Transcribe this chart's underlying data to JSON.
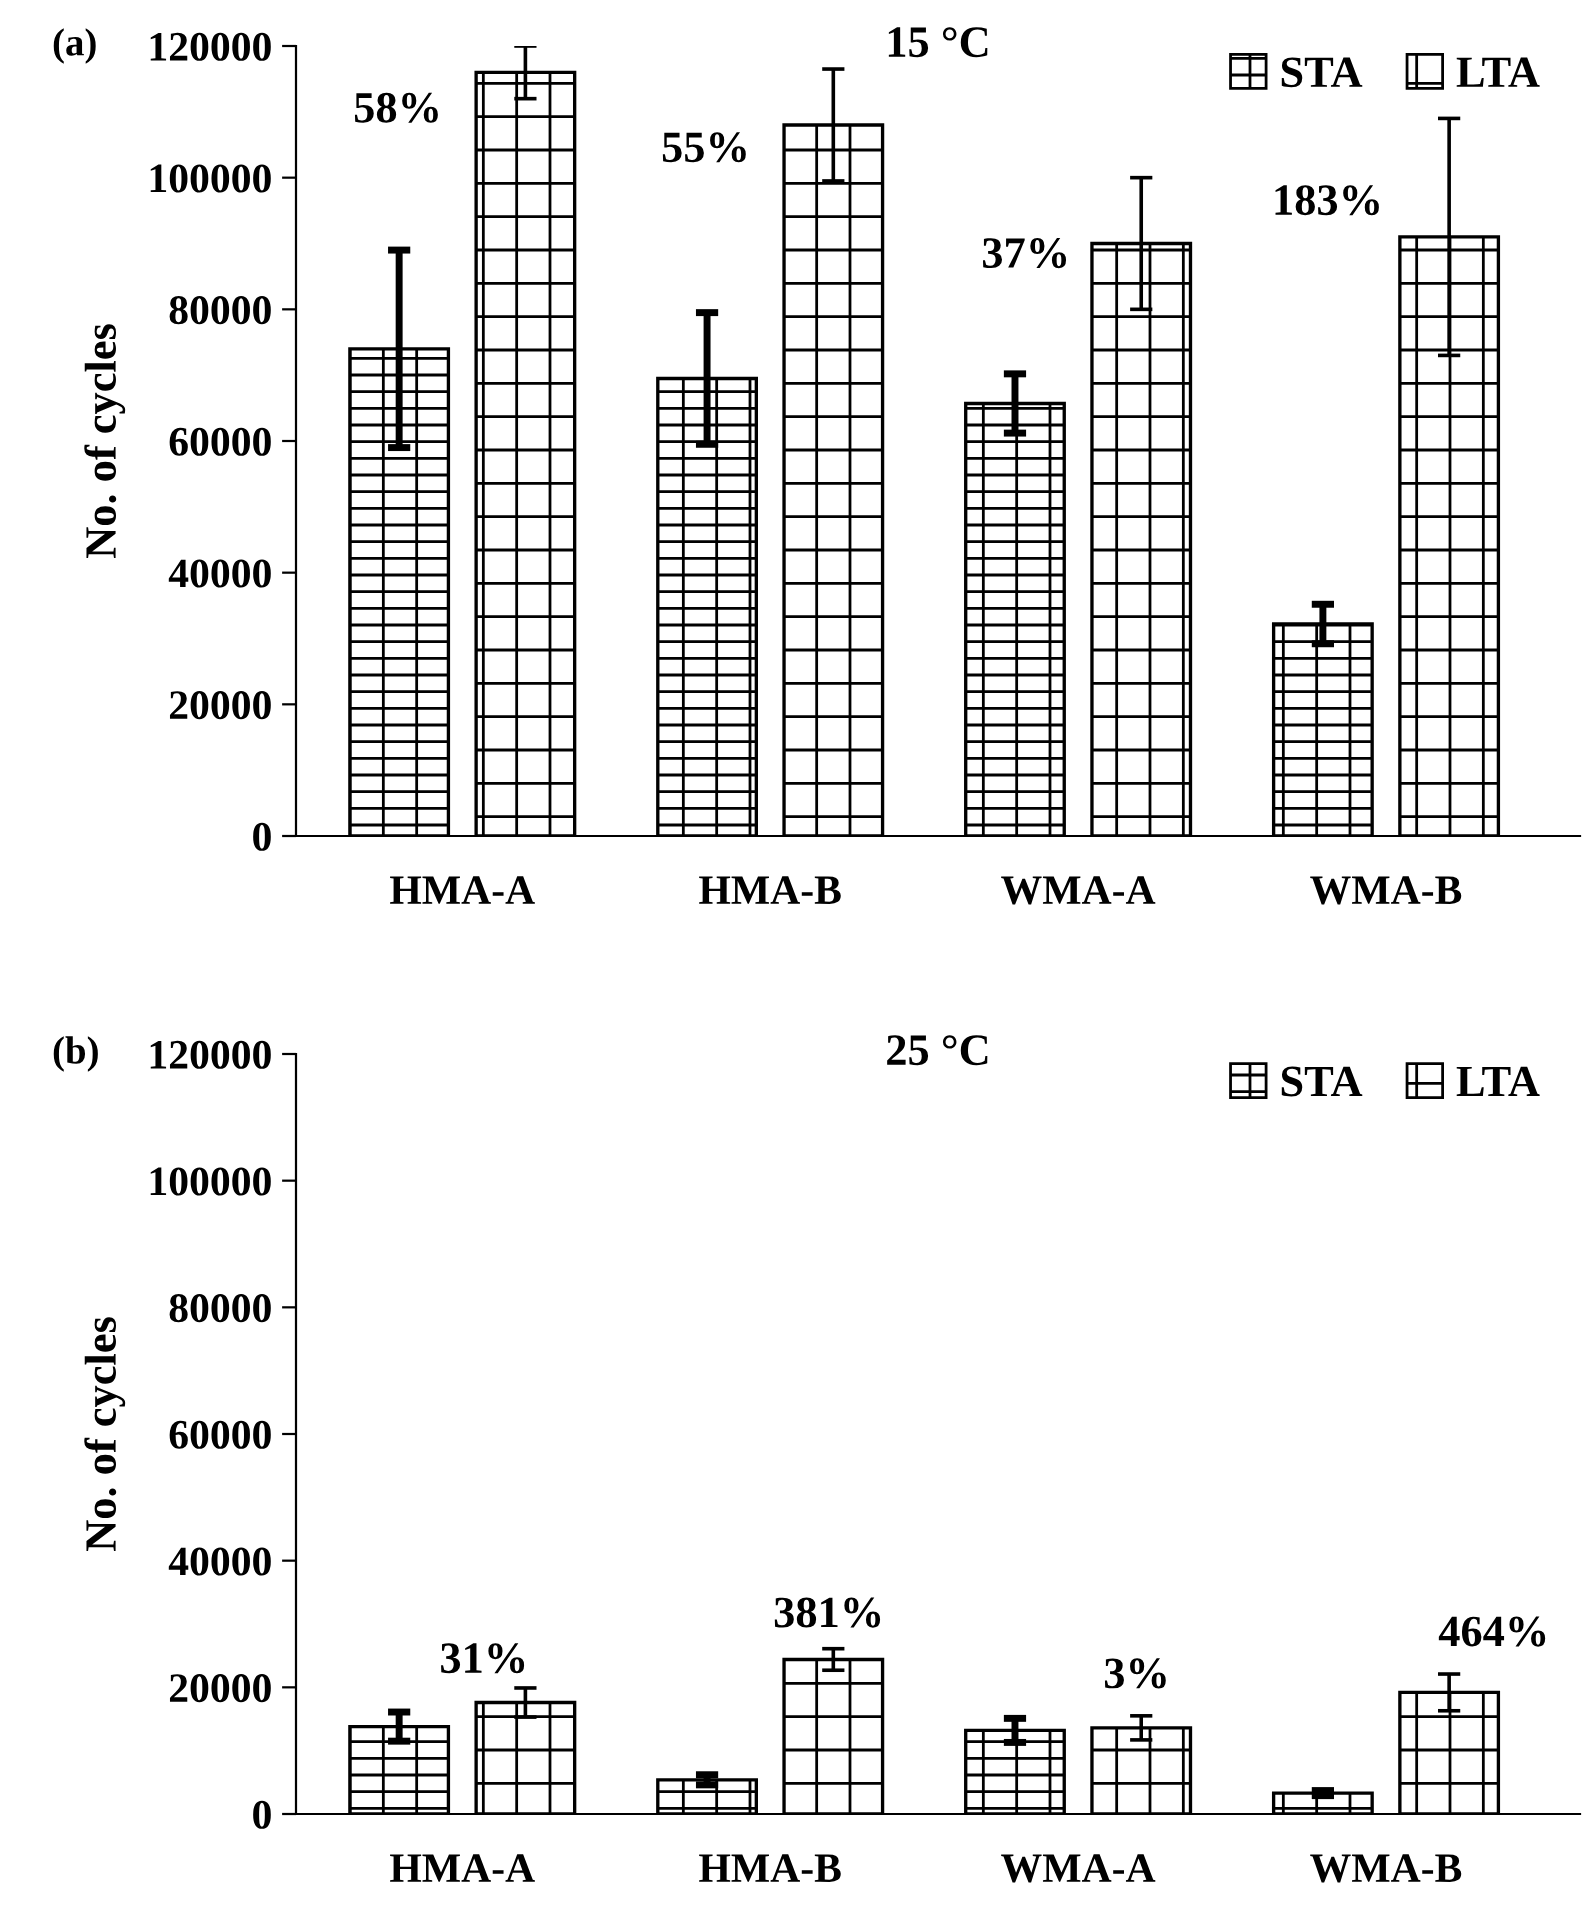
{
  "chart_data": [
    {
      "type": "bar",
      "title": "15 °C",
      "ylabel": "No. of cycles",
      "categories": [
        "HMA-A",
        "HMA-B",
        "WMA-A",
        "WMA-B"
      ],
      "series": [
        {
          "name": "STA",
          "color": "#000000",
          "values": [
            74000,
            69500,
            65700,
            32200
          ],
          "errors": [
            15000,
            10000,
            4500,
            3000
          ]
        },
        {
          "name": "LTA",
          "color": "#000000",
          "values": [
            116000,
            108000,
            90000,
            91000
          ],
          "errors": [
            4000,
            8500,
            10000,
            18000
          ]
        }
      ],
      "ylim": [
        0,
        120000
      ],
      "yticks": [
        0,
        20000,
        40000,
        60000,
        80000,
        100000,
        120000
      ],
      "grid": false,
      "legend": "top right",
      "annotations": [
        "(a)",
        "58%",
        "55%",
        "37%",
        "183%"
      ]
    },
    {
      "type": "bar",
      "title": "25 °C",
      "ylabel": "No. of cycles",
      "categories": [
        "HMA-A",
        "HMA-B",
        "WMA-A",
        "WMA-B"
      ],
      "series": [
        {
          "name": "STA",
          "color": "#000000",
          "values": [
            13800,
            5400,
            13200,
            3300
          ],
          "errors": [
            2300,
            800,
            1900,
            400
          ]
        },
        {
          "name": "LTA",
          "color": "#000000",
          "values": [
            17600,
            24400,
            13600,
            19200
          ],
          "errors": [
            2300,
            1700,
            1900,
            2900
          ]
        }
      ],
      "ylim": [
        0,
        120000
      ],
      "yticks": [
        0,
        20000,
        40000,
        60000,
        80000,
        100000,
        120000
      ],
      "grid": false,
      "legend": "top right",
      "annotations": [
        "(b)",
        "31%",
        "381%",
        "3%",
        "464%"
      ]
    }
  ]
}
